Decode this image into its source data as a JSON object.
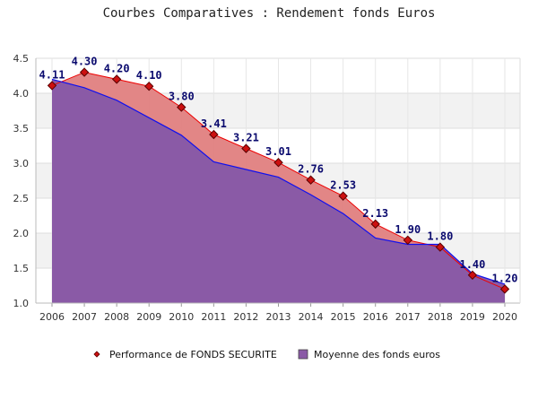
{
  "chart_data": {
    "type": "area",
    "title": "Courbes Comparatives : Rendement fonds Euros",
    "xlabel": "",
    "ylabel": "",
    "ylim": [
      1.0,
      4.5
    ],
    "yticks": [
      "1.0",
      "1.5",
      "2.0",
      "2.5",
      "3.0",
      "3.5",
      "4.0",
      "4.5"
    ],
    "categories": [
      "2006",
      "2007",
      "2008",
      "2009",
      "2010",
      "2011",
      "2012",
      "2013",
      "2014",
      "2015",
      "2016",
      "2017",
      "2018",
      "2019",
      "2020"
    ],
    "grid": true,
    "legend_position": "bottom",
    "series": [
      {
        "name": "Performance de FONDS SECURITE",
        "values": [
          4.11,
          4.3,
          4.2,
          4.1,
          3.8,
          3.41,
          3.21,
          3.01,
          2.76,
          2.53,
          2.13,
          1.9,
          1.8,
          1.4,
          1.2
        ],
        "value_labels": [
          "4.11",
          "4.30",
          "4.20",
          "4.10",
          "3.80",
          "3.41",
          "3.21",
          "3.01",
          "2.76",
          "2.53",
          "2.13",
          "1.90",
          "1.80",
          "1.40",
          "1.20"
        ],
        "line_color": "#ee0000",
        "fill_color": "#e08080",
        "marker_color": "#cc1010"
      },
      {
        "name": "Moyenne des fonds euros",
        "values": [
          4.2,
          4.08,
          3.9,
          3.65,
          3.4,
          3.02,
          2.91,
          2.8,
          2.55,
          2.28,
          1.93,
          1.84,
          1.84,
          1.42,
          1.27
        ],
        "line_color": "#1010ee",
        "fill_color": "#8a5aa6"
      }
    ]
  }
}
